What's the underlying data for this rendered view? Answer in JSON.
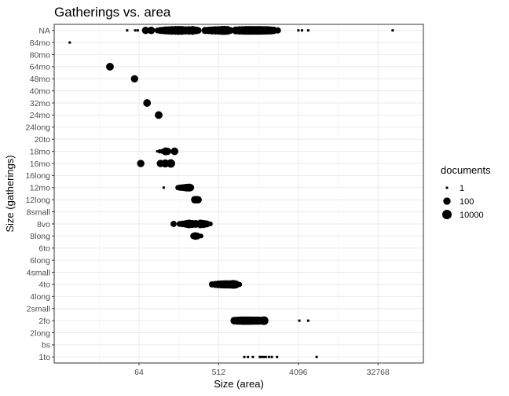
{
  "chart_data": {
    "type": "scatter",
    "title": "Gatherings vs. area",
    "xlabel": "Size (area)",
    "ylabel": "Size (gatherings)",
    "x_scale": "log2",
    "xlim": [
      7,
      107000
    ],
    "x_ticks": [
      64,
      512,
      4096,
      32768
    ],
    "grid": true,
    "categories": [
      "1to",
      "bs",
      "2long",
      "2fo",
      "2small",
      "4long",
      "4to",
      "4small",
      "6long",
      "6to",
      "8long",
      "8vo",
      "8small",
      "12long",
      "12mo",
      "16long",
      "16mo",
      "18mo",
      "20to",
      "24long",
      "24mo",
      "32mo",
      "40mo",
      "48mo",
      "64mo",
      "80mo",
      "84mo",
      "NA"
    ],
    "legend": {
      "title": "documents",
      "placement": "right",
      "entries": [
        {
          "label": "1",
          "value": 1
        },
        {
          "label": "100",
          "value": 100
        },
        {
          "label": "10000",
          "value": 10000
        }
      ]
    },
    "points": [
      {
        "cat": "NA",
        "x": 47,
        "n": 1
      },
      {
        "cat": "NA",
        "x": 58,
        "n": 1
      },
      {
        "cat": "NA",
        "x": 62,
        "n": 1
      },
      {
        "cat": "NA",
        "x": 76,
        "n": 100
      },
      {
        "cat": "NA",
        "x": 88,
        "n": 150
      },
      {
        "cat": "NA",
        "x": 104,
        "n": 10
      },
      {
        "cat": "NA",
        "x": 112,
        "n": 60
      },
      {
        "cat": "NA",
        "x": 120,
        "n": 120
      },
      {
        "cat": "NA",
        "x": 128,
        "n": 300
      },
      {
        "cat": "NA",
        "x": 138,
        "n": 600
      },
      {
        "cat": "NA",
        "x": 150,
        "n": 1200
      },
      {
        "cat": "NA",
        "x": 165,
        "n": 1800
      },
      {
        "cat": "NA",
        "x": 180,
        "n": 2500
      },
      {
        "cat": "NA",
        "x": 196,
        "n": 2000
      },
      {
        "cat": "NA",
        "x": 215,
        "n": 600
      },
      {
        "cat": "NA",
        "x": 235,
        "n": 900
      },
      {
        "cat": "NA",
        "x": 260,
        "n": 1500
      },
      {
        "cat": "NA",
        "x": 285,
        "n": 200
      },
      {
        "cat": "NA",
        "x": 300,
        "n": 30
      },
      {
        "cat": "NA",
        "x": 360,
        "n": 80
      },
      {
        "cat": "NA",
        "x": 395,
        "n": 150
      },
      {
        "cat": "NA",
        "x": 430,
        "n": 400
      },
      {
        "cat": "NA",
        "x": 470,
        "n": 700
      },
      {
        "cat": "NA",
        "x": 510,
        "n": 900
      },
      {
        "cat": "NA",
        "x": 555,
        "n": 2500
      },
      {
        "cat": "NA",
        "x": 595,
        "n": 3000
      },
      {
        "cat": "NA",
        "x": 640,
        "n": 1500
      },
      {
        "cat": "NA",
        "x": 690,
        "n": 60
      },
      {
        "cat": "NA",
        "x": 800,
        "n": 300
      },
      {
        "cat": "NA",
        "x": 880,
        "n": 800
      },
      {
        "cat": "NA",
        "x": 960,
        "n": 1200
      },
      {
        "cat": "NA",
        "x": 1040,
        "n": 1500
      },
      {
        "cat": "NA",
        "x": 1120,
        "n": 1800
      },
      {
        "cat": "NA",
        "x": 1200,
        "n": 2000
      },
      {
        "cat": "NA",
        "x": 1300,
        "n": 2000
      },
      {
        "cat": "NA",
        "x": 1400,
        "n": 1800
      },
      {
        "cat": "NA",
        "x": 1500,
        "n": 1500
      },
      {
        "cat": "NA",
        "x": 1620,
        "n": 1200
      },
      {
        "cat": "NA",
        "x": 1750,
        "n": 1000
      },
      {
        "cat": "NA",
        "x": 1880,
        "n": 700
      },
      {
        "cat": "NA",
        "x": 2000,
        "n": 400
      },
      {
        "cat": "NA",
        "x": 2150,
        "n": 150
      },
      {
        "cat": "NA",
        "x": 2400,
        "n": 15
      },
      {
        "cat": "NA",
        "x": 4100,
        "n": 1
      },
      {
        "cat": "NA",
        "x": 4500,
        "n": 1
      },
      {
        "cat": "NA",
        "x": 5300,
        "n": 1
      },
      {
        "cat": "NA",
        "x": 48000,
        "n": 1
      },
      {
        "cat": "84mo",
        "x": 10.5,
        "n": 1
      },
      {
        "cat": "64mo",
        "x": 30,
        "n": 200
      },
      {
        "cat": "48mo",
        "x": 57,
        "n": 100
      },
      {
        "cat": "32mo",
        "x": 79,
        "n": 200
      },
      {
        "cat": "24mo",
        "x": 107,
        "n": 200
      },
      {
        "cat": "18mo",
        "x": 103,
        "n": 1
      },
      {
        "cat": "18mo",
        "x": 110,
        "n": 2
      },
      {
        "cat": "18mo",
        "x": 117,
        "n": 3
      },
      {
        "cat": "18mo",
        "x": 128,
        "n": 300
      },
      {
        "cat": "18mo",
        "x": 135,
        "n": 100
      },
      {
        "cat": "18mo",
        "x": 162,
        "n": 150
      },
      {
        "cat": "16mo",
        "x": 67,
        "n": 100
      },
      {
        "cat": "16mo",
        "x": 112,
        "n": 100
      },
      {
        "cat": "16mo",
        "x": 127,
        "n": 400
      },
      {
        "cat": "16mo",
        "x": 147,
        "n": 1000
      },
      {
        "cat": "12mo",
        "x": 122,
        "n": 1
      },
      {
        "cat": "12mo",
        "x": 177,
        "n": 5
      },
      {
        "cat": "12mo",
        "x": 187,
        "n": 15
      },
      {
        "cat": "12mo",
        "x": 198,
        "n": 30
      },
      {
        "cat": "12mo",
        "x": 209,
        "n": 60
      },
      {
        "cat": "12mo",
        "x": 222,
        "n": 250
      },
      {
        "cat": "12mo",
        "x": 238,
        "n": 400
      },
      {
        "cat": "12mo",
        "x": 246,
        "n": 80
      },
      {
        "cat": "12long",
        "x": 275,
        "n": 150
      },
      {
        "cat": "12long",
        "x": 290,
        "n": 150
      },
      {
        "cat": "12long",
        "x": 300,
        "n": 80
      },
      {
        "cat": "8vo",
        "x": 158,
        "n": 15
      },
      {
        "cat": "8vo",
        "x": 185,
        "n": 10
      },
      {
        "cat": "8vo",
        "x": 200,
        "n": 30
      },
      {
        "cat": "8vo",
        "x": 220,
        "n": 300
      },
      {
        "cat": "8vo",
        "x": 236,
        "n": 1500
      },
      {
        "cat": "8vo",
        "x": 255,
        "n": 400
      },
      {
        "cat": "8vo",
        "x": 280,
        "n": 300
      },
      {
        "cat": "8vo",
        "x": 318,
        "n": 1500
      },
      {
        "cat": "8vo",
        "x": 345,
        "n": 400
      },
      {
        "cat": "8vo",
        "x": 375,
        "n": 50
      },
      {
        "cat": "8vo",
        "x": 412,
        "n": 3
      },
      {
        "cat": "8long",
        "x": 265,
        "n": 20
      },
      {
        "cat": "8long",
        "x": 278,
        "n": 150
      },
      {
        "cat": "8long",
        "x": 293,
        "n": 40
      },
      {
        "cat": "8long",
        "x": 323,
        "n": 3
      },
      {
        "cat": "4to",
        "x": 430,
        "n": 15
      },
      {
        "cat": "4to",
        "x": 470,
        "n": 60
      },
      {
        "cat": "4to",
        "x": 505,
        "n": 150
      },
      {
        "cat": "4to",
        "x": 540,
        "n": 300
      },
      {
        "cat": "4to",
        "x": 575,
        "n": 500
      },
      {
        "cat": "4to",
        "x": 615,
        "n": 700
      },
      {
        "cat": "4to",
        "x": 660,
        "n": 600
      },
      {
        "cat": "4to",
        "x": 705,
        "n": 800
      },
      {
        "cat": "4to",
        "x": 755,
        "n": 1500
      },
      {
        "cat": "4to",
        "x": 800,
        "n": 400
      },
      {
        "cat": "4to",
        "x": 880,
        "n": 5
      },
      {
        "cat": "2fo",
        "x": 770,
        "n": 200
      },
      {
        "cat": "2fo",
        "x": 830,
        "n": 400
      },
      {
        "cat": "2fo",
        "x": 890,
        "n": 600
      },
      {
        "cat": "2fo",
        "x": 950,
        "n": 800
      },
      {
        "cat": "2fo",
        "x": 1010,
        "n": 900
      },
      {
        "cat": "2fo",
        "x": 1080,
        "n": 900
      },
      {
        "cat": "2fo",
        "x": 1150,
        "n": 800
      },
      {
        "cat": "2fo",
        "x": 1230,
        "n": 700
      },
      {
        "cat": "2fo",
        "x": 1310,
        "n": 600
      },
      {
        "cat": "2fo",
        "x": 1390,
        "n": 500
      },
      {
        "cat": "2fo",
        "x": 1480,
        "n": 400
      },
      {
        "cat": "2fo",
        "x": 1580,
        "n": 400
      },
      {
        "cat": "2fo",
        "x": 1680,
        "n": 1200
      },
      {
        "cat": "2fo",
        "x": 4200,
        "n": 1
      },
      {
        "cat": "2fo",
        "x": 5300,
        "n": 1
      },
      {
        "cat": "1to",
        "x": 1000,
        "n": 1
      },
      {
        "cat": "1to",
        "x": 1100,
        "n": 1
      },
      {
        "cat": "1to",
        "x": 1250,
        "n": 1
      },
      {
        "cat": "1to",
        "x": 1500,
        "n": 1
      },
      {
        "cat": "1to",
        "x": 1550,
        "n": 1
      },
      {
        "cat": "1to",
        "x": 1650,
        "n": 1
      },
      {
        "cat": "1to",
        "x": 1750,
        "n": 1
      },
      {
        "cat": "1to",
        "x": 1900,
        "n": 1
      },
      {
        "cat": "1to",
        "x": 2050,
        "n": 1
      },
      {
        "cat": "1to",
        "x": 2350,
        "n": 1
      },
      {
        "cat": "1to",
        "x": 6600,
        "n": 1
      }
    ]
  }
}
